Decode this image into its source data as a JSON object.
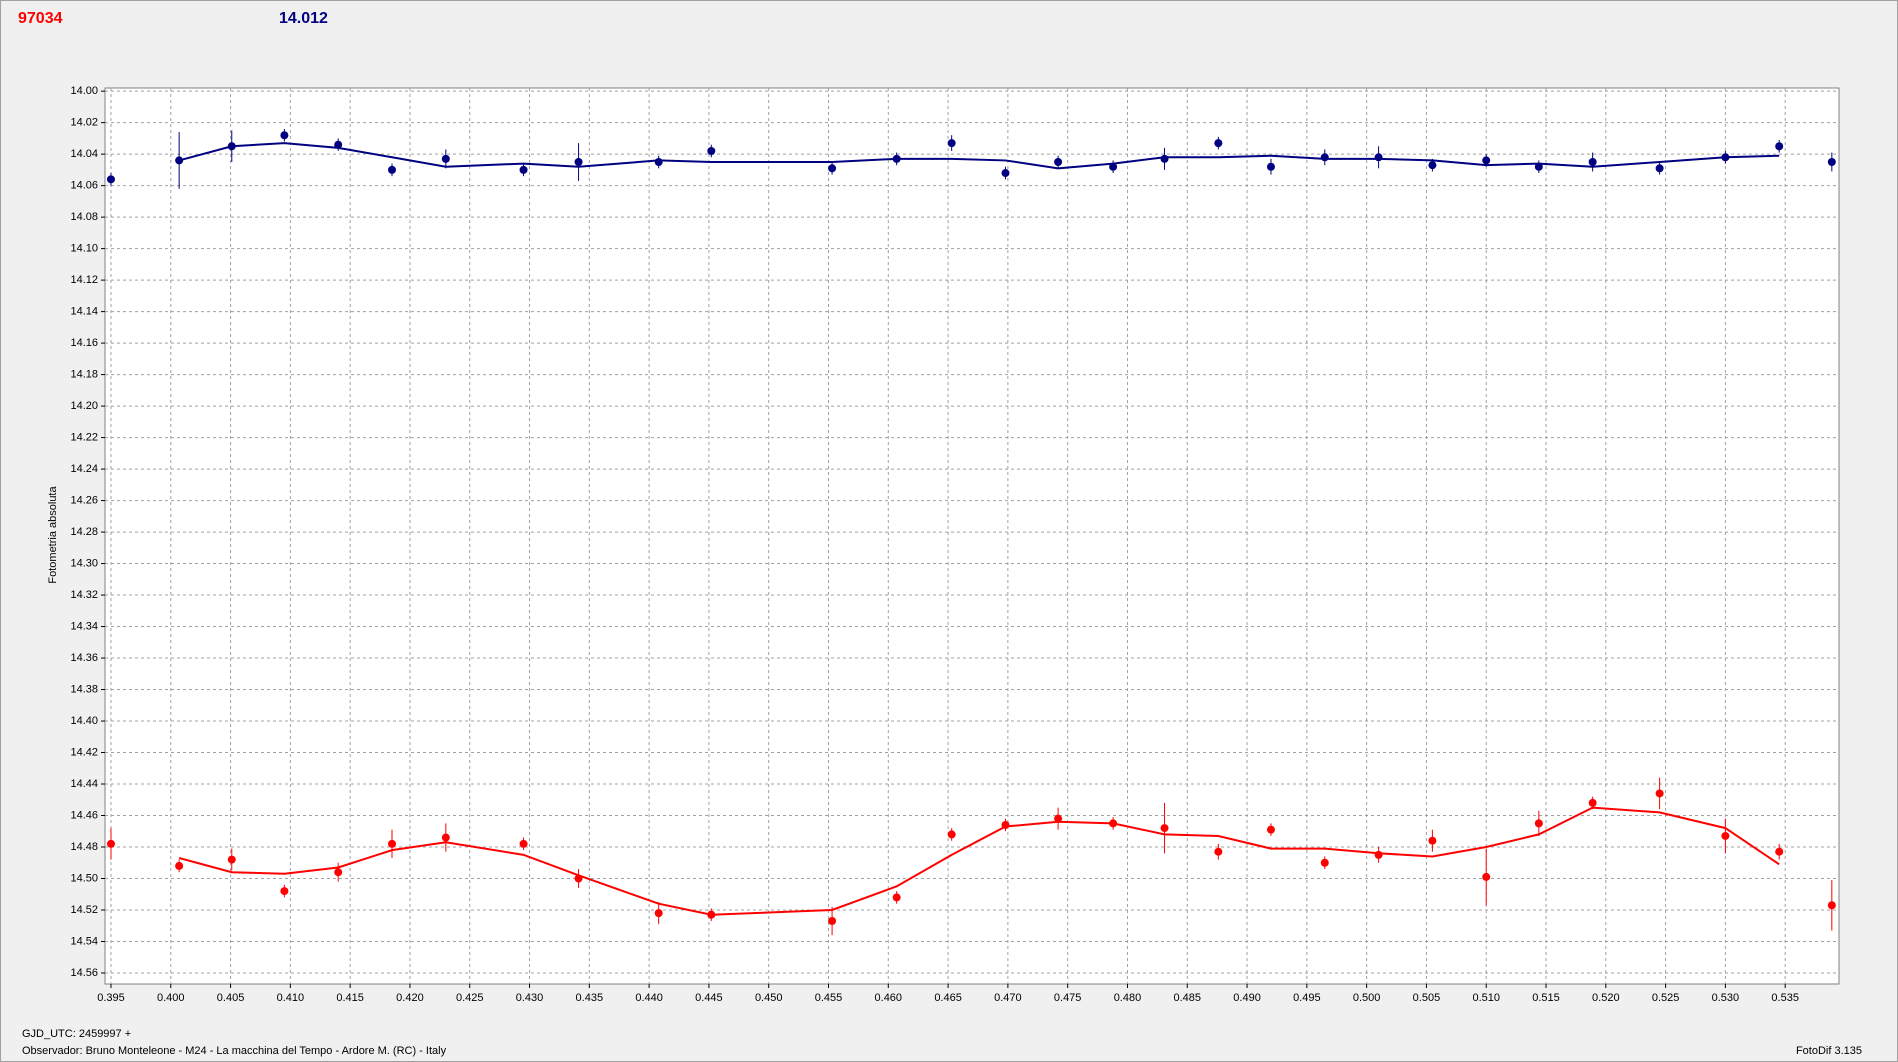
{
  "header": {
    "id": "97034",
    "value": "14.012"
  },
  "footer": {
    "date": "GJD_UTC: 2459997 +",
    "observer": "Observador: Bruno Monteleone - M24 - La macchina del Tempo - Ardore M. (RC) - Italy",
    "software": "FotoDif 3.135"
  },
  "chart_data": {
    "type": "scatter",
    "y_label": "Fotometria absoluta",
    "grid": true,
    "xlim": [
      0.3945,
      0.5395
    ],
    "ylim": [
      14.567,
      13.998
    ],
    "xticks": [
      {
        "value": 0.395,
        "label": "0.395"
      },
      {
        "value": 0.4,
        "label": "0.400"
      },
      {
        "value": 0.405,
        "label": "0.405"
      },
      {
        "value": 0.41,
        "label": "0.410"
      },
      {
        "value": 0.415,
        "label": "0.415"
      },
      {
        "value": 0.42,
        "label": "0.420"
      },
      {
        "value": 0.425,
        "label": "0.425"
      },
      {
        "value": 0.43,
        "label": "0.430"
      },
      {
        "value": 0.435,
        "label": "0.435"
      },
      {
        "value": 0.44,
        "label": "0.440"
      },
      {
        "value": 0.445,
        "label": "0.445"
      },
      {
        "value": 0.45,
        "label": "0.450"
      },
      {
        "value": 0.455,
        "label": "0.455"
      },
      {
        "value": 0.46,
        "label": "0.460"
      },
      {
        "value": 0.465,
        "label": "0.465"
      },
      {
        "value": 0.47,
        "label": "0.470"
      },
      {
        "value": 0.475,
        "label": "0.475"
      },
      {
        "value": 0.48,
        "label": "0.480"
      },
      {
        "value": 0.485,
        "label": "0.485"
      },
      {
        "value": 0.49,
        "label": "0.490"
      },
      {
        "value": 0.495,
        "label": "0.495"
      },
      {
        "value": 0.5,
        "label": "0.500"
      },
      {
        "value": 0.505,
        "label": "0.505"
      },
      {
        "value": 0.51,
        "label": "0.510"
      },
      {
        "value": 0.515,
        "label": "0.515"
      },
      {
        "value": 0.52,
        "label": "0.520"
      },
      {
        "value": 0.525,
        "label": "0.525"
      },
      {
        "value": 0.53,
        "label": "0.530"
      },
      {
        "value": 0.535,
        "label": "0.535"
      }
    ],
    "yticks": [
      {
        "value": 14.0,
        "label": "14.00"
      },
      {
        "value": 14.02,
        "label": "14.02"
      },
      {
        "value": 14.04,
        "label": "14.04"
      },
      {
        "value": 14.06,
        "label": "14.06"
      },
      {
        "value": 14.08,
        "label": "14.08"
      },
      {
        "value": 14.1,
        "label": "14.10"
      },
      {
        "value": 14.12,
        "label": "14.12"
      },
      {
        "value": 14.14,
        "label": "14.14"
      },
      {
        "value": 14.16,
        "label": "14.16"
      },
      {
        "value": 14.18,
        "label": "14.18"
      },
      {
        "value": 14.2,
        "label": "14.20"
      },
      {
        "value": 14.22,
        "label": "14.22"
      },
      {
        "value": 14.24,
        "label": "14.24"
      },
      {
        "value": 14.26,
        "label": "14.26"
      },
      {
        "value": 14.28,
        "label": "14.28"
      },
      {
        "value": 14.3,
        "label": "14.30"
      },
      {
        "value": 14.32,
        "label": "14.32"
      },
      {
        "value": 14.34,
        "label": "14.34"
      },
      {
        "value": 14.36,
        "label": "14.36"
      },
      {
        "value": 14.38,
        "label": "14.38"
      },
      {
        "value": 14.4,
        "label": "14.40"
      },
      {
        "value": 14.42,
        "label": "14.42"
      },
      {
        "value": 14.44,
        "label": "14.44"
      },
      {
        "value": 14.46,
        "label": "14.46"
      },
      {
        "value": 14.48,
        "label": "14.48"
      },
      {
        "value": 14.5,
        "label": "14.50"
      },
      {
        "value": 14.52,
        "label": "14.52"
      },
      {
        "value": 14.54,
        "label": "14.54"
      },
      {
        "value": 14.56,
        "label": "14.56"
      }
    ],
    "x": [
      0.395,
      0.4007,
      0.4051,
      0.4095,
      0.414,
      0.4185,
      0.423,
      0.4295,
      0.4341,
      0.4408,
      0.4452,
      0.4553,
      0.4607,
      0.4653,
      0.4698,
      0.4742,
      0.4788,
      0.4831,
      0.4876,
      0.492,
      0.4965,
      0.501,
      0.5055,
      0.51,
      0.5144,
      0.5189,
      0.5245,
      0.53,
      0.5345,
      0.5389
    ],
    "fit_x": [
      0.4007,
      0.4051,
      0.4095,
      0.414,
      0.4185,
      0.423,
      0.4295,
      0.4341,
      0.4408,
      0.4452,
      0.4553,
      0.4607,
      0.4653,
      0.4698,
      0.4742,
      0.4788,
      0.4831,
      0.4876,
      0.492,
      0.4965,
      0.501,
      0.5055,
      0.51,
      0.5144,
      0.5189,
      0.5245,
      0.53,
      0.5345
    ],
    "series": [
      {
        "color": "#000080",
        "values": [
          14.056,
          14.044,
          14.035,
          14.028,
          14.034,
          14.05,
          14.043,
          14.05,
          14.045,
          14.045,
          14.038,
          14.049,
          14.043,
          14.033,
          14.052,
          14.045,
          14.048,
          14.043,
          14.033,
          14.048,
          14.042,
          14.042,
          14.047,
          14.044,
          14.048,
          14.045,
          14.049,
          14.042,
          14.035,
          14.045
        ],
        "errors": [
          0.004,
          0.018,
          0.01,
          0.004,
          0.004,
          0.004,
          0.006,
          0.004,
          0.012,
          0.004,
          0.004,
          0.004,
          0.004,
          0.005,
          0.004,
          0.004,
          0.004,
          0.007,
          0.004,
          0.005,
          0.005,
          0.007,
          0.004,
          0.004,
          0.004,
          0.006,
          0.004,
          0.004,
          0.004,
          0.006
        ],
        "fit_values": [
          14.044,
          14.035,
          14.033,
          14.036,
          14.042,
          14.048,
          14.046,
          14.048,
          14.044,
          14.045,
          14.045,
          14.043,
          14.043,
          14.044,
          14.049,
          14.046,
          14.042,
          14.042,
          14.041,
          14.043,
          14.043,
          14.044,
          14.047,
          14.046,
          14.048,
          14.045,
          14.042,
          14.041
        ]
      },
      {
        "color": "#ff0000",
        "values": [
          14.478,
          14.492,
          14.488,
          14.508,
          14.496,
          14.478,
          14.474,
          14.478,
          14.5,
          14.522,
          14.523,
          14.527,
          14.512,
          14.472,
          14.466,
          14.462,
          14.465,
          14.468,
          14.483,
          14.469,
          14.49,
          14.485,
          14.476,
          14.499,
          14.465,
          14.452,
          14.446,
          14.473,
          14.483,
          14.517
        ],
        "errors": [
          0.01,
          0.004,
          0.007,
          0.004,
          0.006,
          0.009,
          0.009,
          0.004,
          0.006,
          0.007,
          0.004,
          0.009,
          0.004,
          0.004,
          0.004,
          0.007,
          0.004,
          0.016,
          0.005,
          0.004,
          0.004,
          0.005,
          0.007,
          0.018,
          0.008,
          0.004,
          0.01,
          0.011,
          0.005,
          0.016
        ],
        "fit_values": [
          14.487,
          14.496,
          14.497,
          14.493,
          14.482,
          14.477,
          14.485,
          14.498,
          14.516,
          14.523,
          14.52,
          14.505,
          14.485,
          14.467,
          14.464,
          14.465,
          14.472,
          14.473,
          14.481,
          14.481,
          14.484,
          14.486,
          14.48,
          14.472,
          14.455,
          14.458,
          14.468,
          14.491
        ]
      }
    ]
  }
}
